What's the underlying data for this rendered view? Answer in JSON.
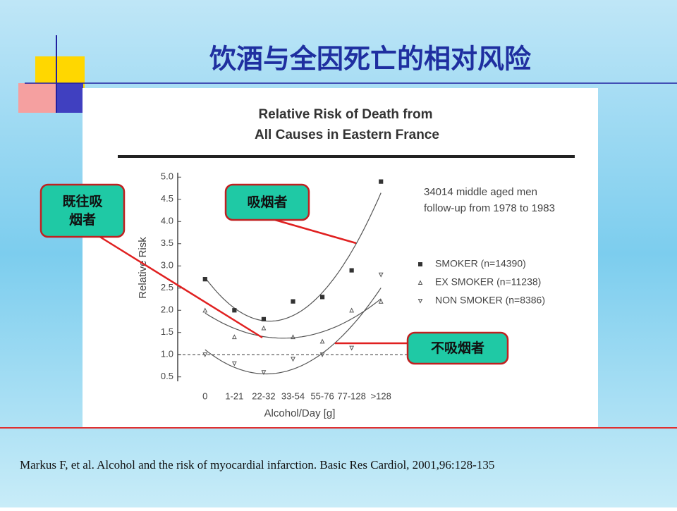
{
  "slide_title": "饮酒与全因死亡的相对风险",
  "citation": "Markus F, et al. Alcohol and the risk of myocardial infarction. Basic Res Cardiol, 2001,96:128-135",
  "callouts": [
    "既往吸烟者",
    "吸烟者",
    "不吸烟者"
  ],
  "chart_data": {
    "type": "scatter",
    "title": [
      "Relative Risk of Death from",
      "All Causes in Eastern France"
    ],
    "annotation": [
      "34014 middle aged men",
      "follow-up from 1978 to 1983"
    ],
    "x_label": "Alcohol/Day [g]",
    "y_label": "Relative Risk",
    "categories": [
      "0",
      "1-21",
      "22-32",
      "33-54",
      "55-76",
      "77-128",
      ">128"
    ],
    "series": [
      {
        "name": "SMOKER (n=14390)",
        "color": "#333333",
        "marker": "square",
        "values": [
          2.7,
          2.0,
          1.8,
          2.2,
          2.3,
          2.9,
          4.9
        ]
      },
      {
        "name": "EX SMOKER (n=11238)",
        "color": "#555555",
        "marker": "triangle-up",
        "values": [
          2.0,
          1.4,
          1.6,
          1.4,
          1.3,
          2.0,
          2.2
        ]
      },
      {
        "name": "NON SMOKER (n=8386)",
        "color": "#555555",
        "marker": "triangle-down",
        "values": [
          1.0,
          0.8,
          0.6,
          0.9,
          1.0,
          1.15,
          2.8
        ]
      }
    ],
    "ylim": [
      0.4,
      5.1
    ],
    "yticks": [
      0.5,
      {
        "value": 1,
        "label": "1.0"
      },
      1.5,
      {
        "value": 2,
        "label": "2.0"
      },
      2.5,
      {
        "value": 3,
        "label": "3.0"
      },
      3.5,
      {
        "value": 4,
        "label": "4.0"
      },
      4.5,
      {
        "value": 5,
        "label": "5.0"
      }
    ],
    "reference_line": 1
  }
}
